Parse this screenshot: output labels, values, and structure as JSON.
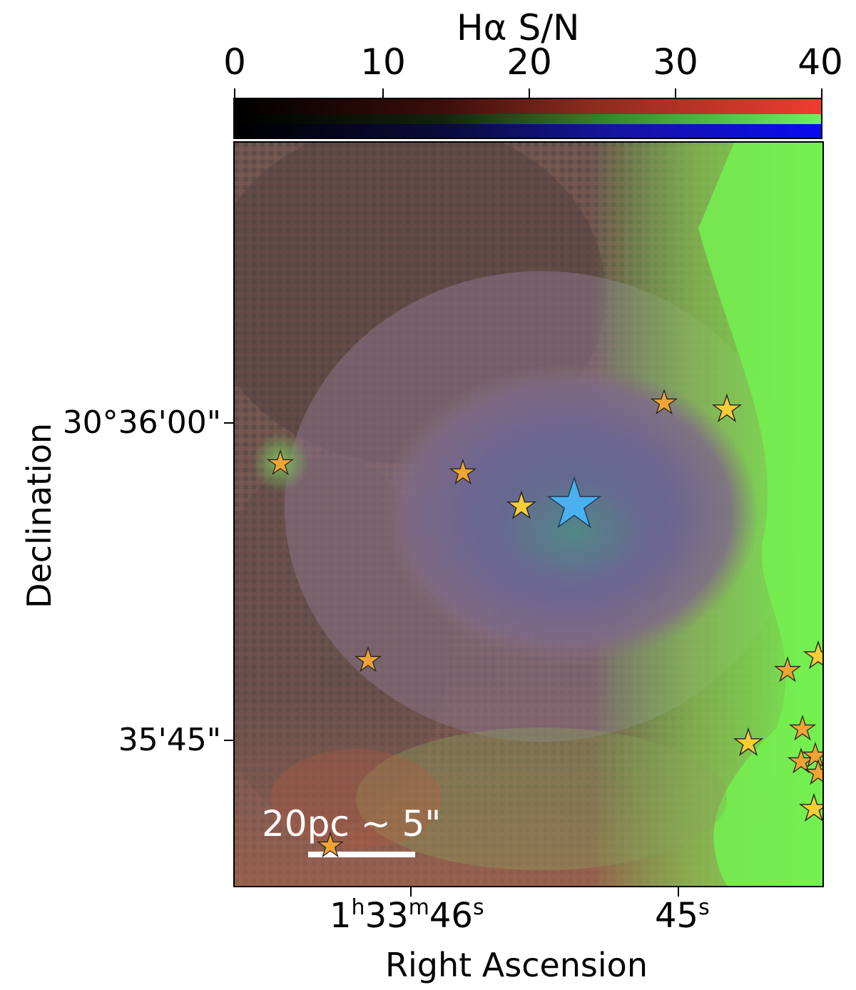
{
  "colorbar": {
    "title": "Hα S/N",
    "ticks": [
      "0",
      "10",
      "20",
      "30",
      "40"
    ],
    "range": [
      0,
      40
    ],
    "channels": [
      {
        "name": "red",
        "color": "#ee3d2f"
      },
      {
        "name": "green",
        "color": "#70f060"
      },
      {
        "name": "blue",
        "color": "#0a0af0"
      }
    ]
  },
  "axes": {
    "ylabel": "Declination",
    "xlabel": "Right Ascension",
    "yticks": [
      "30°36'00\"",
      "35'45\""
    ],
    "xticks": [
      {
        "h": "1",
        "m": "33",
        "s": "46"
      },
      {
        "s": "45"
      }
    ]
  },
  "scalebar": {
    "label": "20pc ~ 5\""
  },
  "stars": {
    "main_color": "#4bb0ef",
    "bright_color": "#f5cd3a",
    "faint_color": "#eea436"
  }
}
